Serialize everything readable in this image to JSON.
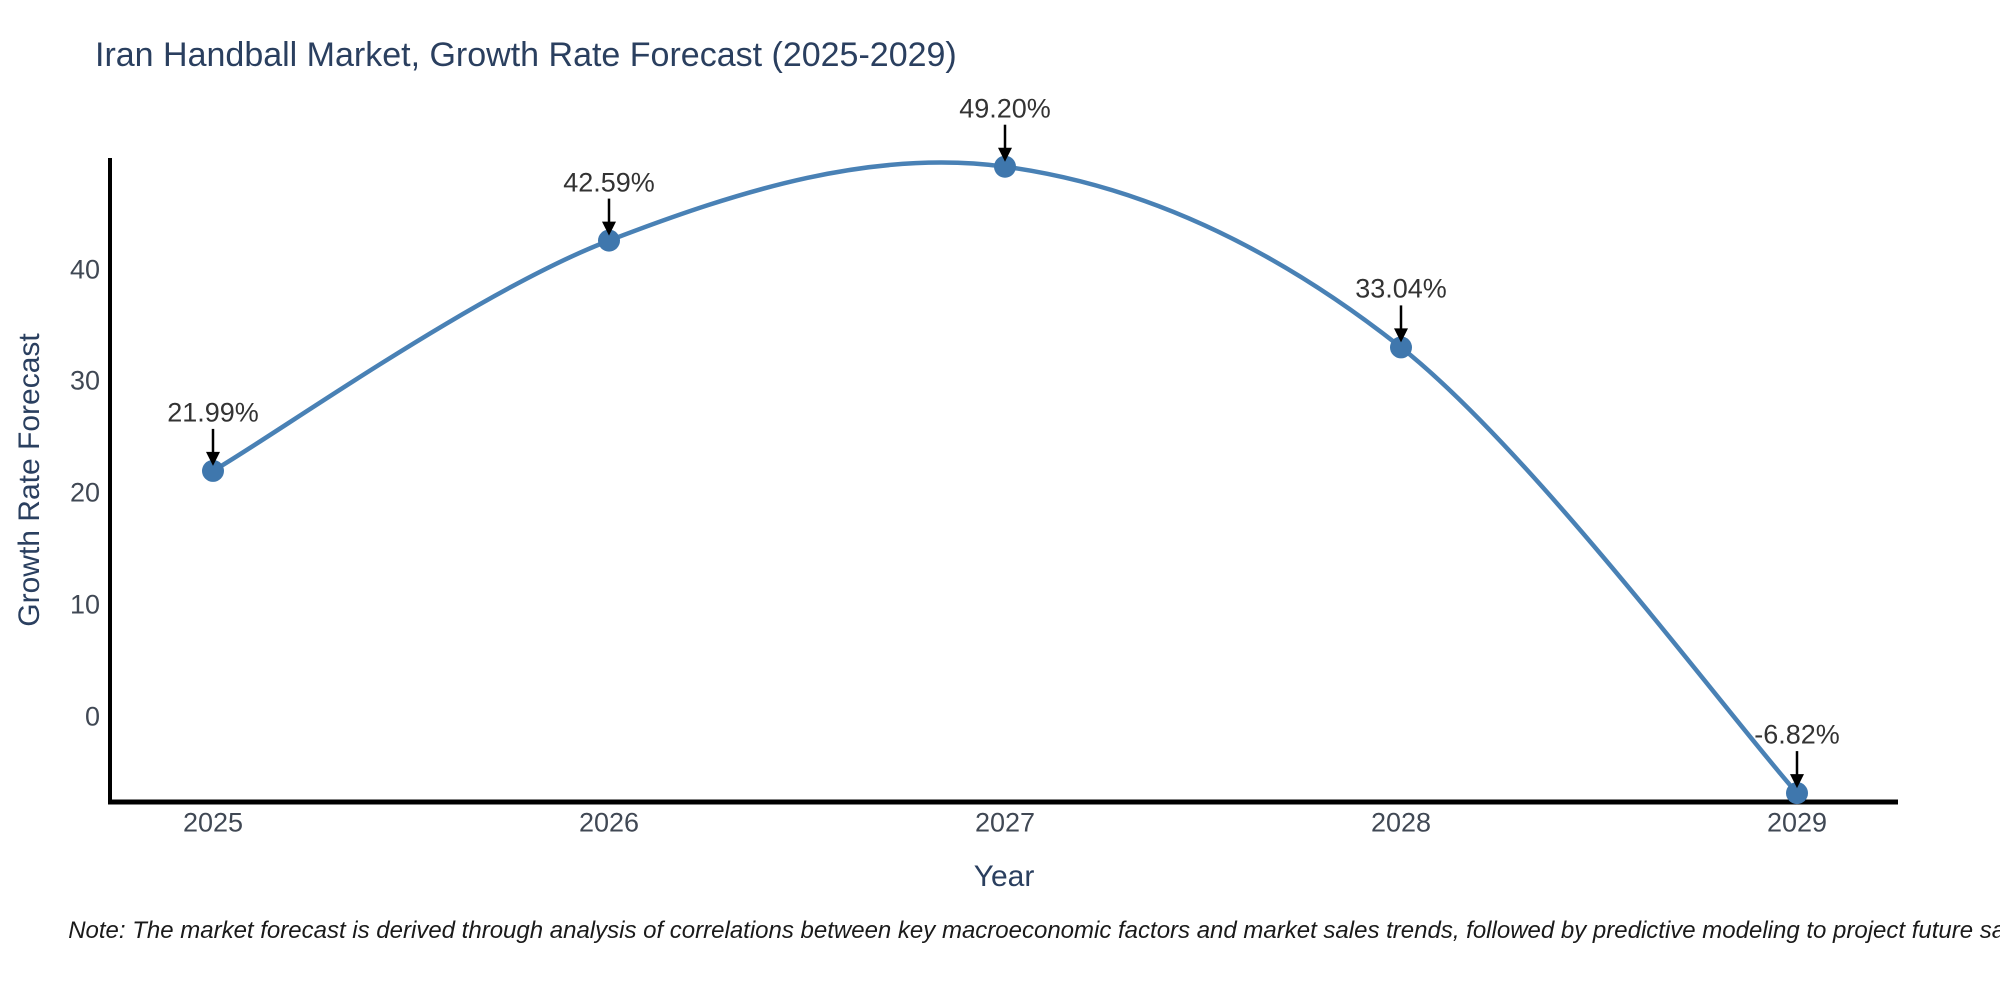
{
  "title": "Iran Handball Market, Growth Rate Forecast (2025-2029)",
  "footnote": "Note: The market forecast is derived through analysis of correlations between key macroeconomic factors and market sales trends, followed by predictive modeling to project future sales",
  "colors": {
    "line": "#4981b5",
    "marker": "#3f77ad",
    "title_text": "#2a3f5f",
    "axis_title_text": "#2a3f5f",
    "tick_text": "#404854",
    "annotation_text": "#333333",
    "annotation_arrow": "#000000",
    "axis_line": "#000000",
    "background": "#ffffff"
  },
  "chart_data": {
    "type": "line",
    "title": "Iran Handball Market, Growth Rate Forecast (2025-2029)",
    "xlabel": "Year",
    "ylabel": "Growth Rate Forecast",
    "categories": [
      "2025",
      "2026",
      "2027",
      "2028",
      "2029"
    ],
    "series": [
      {
        "name": "Growth Rate Forecast",
        "values": [
          21.99,
          42.59,
          49.2,
          33.04,
          -6.82
        ],
        "labels": [
          "21.99%",
          "42.59%",
          "49.20%",
          "33.04%",
          "-6.82%"
        ]
      }
    ],
    "yticks": [
      0,
      10,
      20,
      30,
      40
    ],
    "ytick_labels": [
      "0",
      "10",
      "20",
      "30",
      "40"
    ],
    "ylim": [
      -7.62,
      49.8
    ],
    "line_shape": "spline",
    "markers": true,
    "grid": false,
    "legend": false,
    "annotation_note": "Note: The market forecast is derived through analysis of correlations between key macroeconomic factors and market sales trends, followed by predictive modeling to project future sales"
  }
}
